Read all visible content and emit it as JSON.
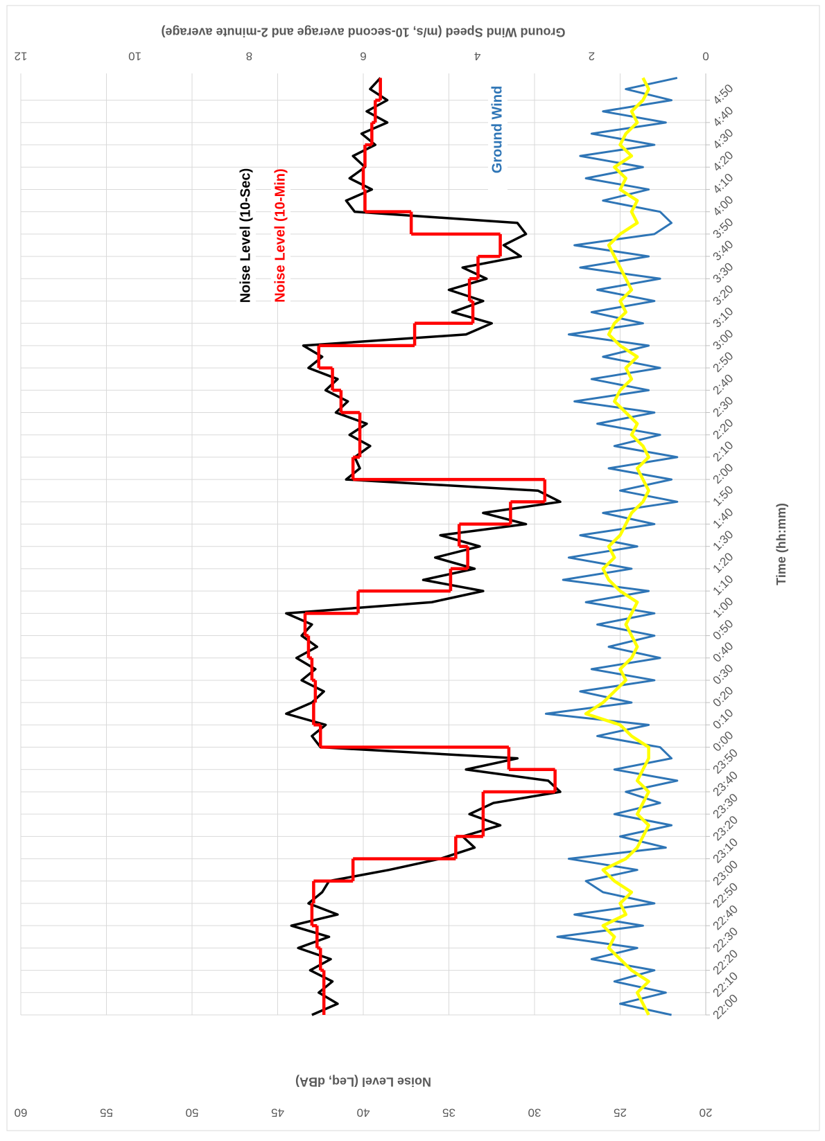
{
  "chart_data": {
    "type": "line",
    "xlabel": "Time (hh:mm)",
    "ylabel": "Noise Level (Leq, dBA)",
    "y2label": "Ground Wind Speed (m/s, 10-second average and 2-minute average)",
    "xlim": [
      0,
      422
    ],
    "ylim": [
      20,
      60
    ],
    "y2lim": [
      0,
      12
    ],
    "grid": true,
    "yticks": [
      20,
      25,
      30,
      35,
      40,
      45,
      50,
      55,
      60
    ],
    "y2ticks": [
      0,
      2,
      4,
      6,
      8,
      10,
      12
    ],
    "xticks": [
      {
        "value": 0,
        "label": "22:00"
      },
      {
        "value": 10,
        "label": "22:10"
      },
      {
        "value": 20,
        "label": "22:20"
      },
      {
        "value": 30,
        "label": "22:30"
      },
      {
        "value": 40,
        "label": "22:40"
      },
      {
        "value": 50,
        "label": "22:50"
      },
      {
        "value": 60,
        "label": "23:00"
      },
      {
        "value": 70,
        "label": "23:10"
      },
      {
        "value": 80,
        "label": "23:20"
      },
      {
        "value": 90,
        "label": "23:30"
      },
      {
        "value": 100,
        "label": "23:40"
      },
      {
        "value": 110,
        "label": "23:50"
      },
      {
        "value": 120,
        "label": "0:00"
      },
      {
        "value": 130,
        "label": "0:10"
      },
      {
        "value": 140,
        "label": "0:20"
      },
      {
        "value": 150,
        "label": "0:30"
      },
      {
        "value": 160,
        "label": "0:40"
      },
      {
        "value": 170,
        "label": "0:50"
      },
      {
        "value": 180,
        "label": "1:00"
      },
      {
        "value": 190,
        "label": "1:10"
      },
      {
        "value": 200,
        "label": "1:20"
      },
      {
        "value": 210,
        "label": "1:30"
      },
      {
        "value": 220,
        "label": "1:40"
      },
      {
        "value": 230,
        "label": "1:50"
      },
      {
        "value": 240,
        "label": "2:00"
      },
      {
        "value": 250,
        "label": "2:10"
      },
      {
        "value": 260,
        "label": "2:20"
      },
      {
        "value": 270,
        "label": "2:30"
      },
      {
        "value": 280,
        "label": "2:40"
      },
      {
        "value": 290,
        "label": "2:50"
      },
      {
        "value": 300,
        "label": "3:00"
      },
      {
        "value": 310,
        "label": "3:10"
      },
      {
        "value": 320,
        "label": "3:20"
      },
      {
        "value": 330,
        "label": "3:30"
      },
      {
        "value": 340,
        "label": "3:40"
      },
      {
        "value": 350,
        "label": "3:50"
      },
      {
        "value": 360,
        "label": "4:00"
      },
      {
        "value": 370,
        "label": "4:10"
      },
      {
        "value": 380,
        "label": "4:20"
      },
      {
        "value": 390,
        "label": "4:30"
      },
      {
        "value": 400,
        "label": "4:40"
      },
      {
        "value": 410,
        "label": "4:50"
      }
    ],
    "x": [
      0,
      5,
      10,
      15,
      20,
      25,
      30,
      35,
      40,
      45,
      50,
      55,
      60,
      65,
      70,
      75,
      80,
      85,
      90,
      95,
      100,
      105,
      110,
      115,
      120,
      125,
      130,
      135,
      140,
      145,
      150,
      155,
      160,
      165,
      170,
      175,
      180,
      185,
      190,
      195,
      200,
      205,
      210,
      215,
      220,
      225,
      230,
      235,
      240,
      245,
      250,
      255,
      260,
      265,
      270,
      275,
      280,
      285,
      290,
      295,
      300,
      305,
      310,
      315,
      320,
      325,
      330,
      335,
      340,
      345,
      350,
      355,
      360,
      365,
      370,
      375,
      380,
      385,
      390,
      395,
      400,
      405,
      410,
      415,
      420
    ],
    "series": [
      {
        "name": "Ground Wind",
        "color": "#2e75b6",
        "axis": "y2",
        "values": [
          0.6,
          1.5,
          0.7,
          1.6,
          0.9,
          2.0,
          1.2,
          2.6,
          1.1,
          2.3,
          0.9,
          1.8,
          2.1,
          1.2,
          2.4,
          0.7,
          1.5,
          0.6,
          1.6,
          0.8,
          1.4,
          0.5,
          1.6,
          0.6,
          0.8,
          1.9,
          1.0,
          2.8,
          1.3,
          2.2,
          0.9,
          2.0,
          0.8,
          1.7,
          0.9,
          1.9,
          0.9,
          2.1,
          1.0,
          2.5,
          1.3,
          2.4,
          1.2,
          2.2,
          0.9,
          1.8,
          0.5,
          1.5,
          0.6,
          1.7,
          0.5,
          1.6,
          0.8,
          1.9,
          0.9,
          2.3,
          1.0,
          2.0,
          0.8,
          1.8,
          1.0,
          2.4,
          1.1,
          2.0,
          0.9,
          1.9,
          0.8,
          2.2,
          1.0,
          2.3,
          0.9,
          0.6,
          0.8,
          1.8,
          1.0,
          2.1,
          1.1,
          2.2,
          0.9,
          2.0,
          0.7,
          1.8,
          0.6,
          1.4,
          0.5
        ]
      },
      {
        "color": "#ffff00",
        "axis": "y2",
        "values": [
          1.0,
          1.1,
          1.2,
          1.0,
          1.3,
          1.5,
          1.7,
          1.6,
          1.8,
          1.4,
          1.5,
          1.3,
          1.6,
          1.8,
          1.4,
          1.2,
          1.1,
          1.0,
          1.2,
          1.1,
          1.0,
          1.2,
          1.1,
          1.0,
          1.0,
          1.3,
          1.5,
          2.1,
          1.8,
          1.6,
          1.4,
          1.5,
          1.3,
          1.2,
          1.3,
          1.4,
          1.3,
          1.2,
          1.5,
          1.7,
          1.8,
          1.6,
          1.7,
          1.5,
          1.4,
          1.3,
          1.1,
          1.0,
          1.1,
          1.2,
          1.0,
          1.1,
          1.3,
          1.2,
          1.4,
          1.6,
          1.5,
          1.3,
          1.4,
          1.2,
          1.5,
          1.7,
          1.6,
          1.4,
          1.5,
          1.3,
          1.4,
          1.5,
          1.6,
          1.7,
          1.5,
          1.2,
          1.3,
          1.2,
          1.5,
          1.4,
          1.6,
          1.3,
          1.5,
          1.4,
          1.2,
          1.3,
          1.1,
          1.0,
          1.1
        ]
      },
      {
        "name": "Noise Level (10-Sec)",
        "color": "#000000",
        "values": [
          43.0,
          41.5,
          42.6,
          41.8,
          43.1,
          41.9,
          43.8,
          42.0,
          44.2,
          41.5,
          43.2,
          42.4,
          42.0,
          38.5,
          35.5,
          33.5,
          34.2,
          32.0,
          33.8,
          32.4,
          28.5,
          29.2,
          34.0,
          31.0,
          42.5,
          43.0,
          42.2,
          44.5,
          43.0,
          42.3,
          43.6,
          42.8,
          43.9,
          42.7,
          43.6,
          43.0,
          44.5,
          36.0,
          33.0,
          36.5,
          33.5,
          35.8,
          33.2,
          35.5,
          30.5,
          33.0,
          28.5,
          29.8,
          41.0,
          40.2,
          40.5,
          39.6,
          40.8,
          39.8,
          41.6,
          40.9,
          42.2,
          41.5,
          43.2,
          42.4,
          43.5,
          34.0,
          32.5,
          34.8,
          33.0,
          35.0,
          32.8,
          34.2,
          30.8,
          31.8,
          30.5,
          31.0,
          40.5,
          41.0,
          39.5,
          40.8,
          39.9,
          40.6,
          39.3,
          40.1,
          38.6,
          39.8,
          38.6,
          39.6,
          39.0
        ]
      },
      {
        "name": "Noise Level (10-Min)",
        "color": "#ff0000",
        "step": true,
        "x": [
          0,
          10,
          20,
          30,
          40,
          50,
          60,
          70,
          80,
          90,
          100,
          110,
          120,
          130,
          140,
          150,
          160,
          170,
          180,
          190,
          200,
          210,
          220,
          230,
          240,
          250,
          260,
          270,
          280,
          290,
          300,
          310,
          320,
          330,
          340,
          350,
          360,
          370,
          380,
          390,
          400,
          410
        ],
        "values": [
          42.3,
          42.3,
          42.5,
          42.7,
          43.0,
          42.9,
          40.6,
          34.6,
          33.0,
          33.0,
          28.8,
          31.5,
          42.5,
          42.9,
          42.8,
          43.0,
          43.2,
          43.4,
          40.3,
          34.9,
          33.9,
          34.4,
          31.4,
          29.4,
          40.6,
          40.2,
          40.2,
          41.3,
          41.8,
          42.6,
          37.0,
          33.6,
          33.8,
          33.3,
          32.0,
          37.2,
          39.9,
          40.0,
          39.9,
          39.5,
          39.3,
          39.0
        ]
      }
    ]
  }
}
